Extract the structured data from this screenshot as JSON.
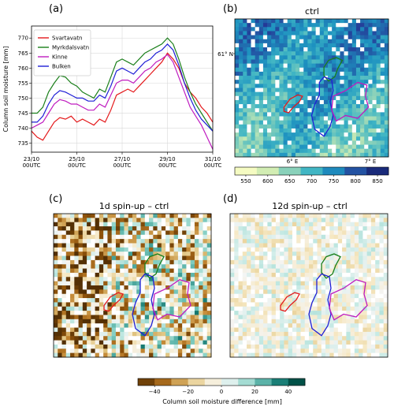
{
  "chart_data": [
    {
      "type": "line",
      "panel": "(a)",
      "ylabel": "Column soil moisture [mm]",
      "xlim": [
        0,
        32
      ],
      "ylim": [
        732,
        774
      ],
      "yticks": [
        735,
        740,
        745,
        750,
        755,
        760,
        765,
        770
      ],
      "xticks": [
        {
          "t": 0,
          "l1": "23/10",
          "l2": "00UTC"
        },
        {
          "t": 8,
          "l1": "25/10",
          "l2": "00UTC"
        },
        {
          "t": 16,
          "l1": "27/10",
          "l2": "00UTC"
        },
        {
          "t": 24,
          "l1": "29/10",
          "l2": "00UTC"
        },
        {
          "t": 32,
          "l1": "31/10",
          "l2": "00UTC"
        }
      ],
      "grid": true,
      "legend_position": "top-left",
      "series": [
        {
          "name": "Svartavatn",
          "color": "#e41a1c",
          "points": [
            [
              0,
              739
            ],
            [
              1,
              737
            ],
            [
              2,
              736
            ],
            [
              3,
              739
            ],
            [
              4,
              742
            ],
            [
              5,
              743.5
            ],
            [
              6,
              743
            ],
            [
              7,
              744
            ],
            [
              8,
              742
            ],
            [
              9,
              743
            ],
            [
              10,
              742
            ],
            [
              11,
              741
            ],
            [
              12,
              743
            ],
            [
              13,
              742
            ],
            [
              14,
              746
            ],
            [
              15,
              751
            ],
            [
              16,
              752
            ],
            [
              17,
              753
            ],
            [
              18,
              752
            ],
            [
              19,
              754
            ],
            [
              20,
              756
            ],
            [
              21,
              758
            ],
            [
              22,
              760
            ],
            [
              23,
              762
            ],
            [
              24,
              765
            ],
            [
              25,
              763
            ],
            [
              26,
              760
            ],
            [
              27,
              755
            ],
            [
              28,
              752
            ],
            [
              29,
              750
            ],
            [
              30,
              747
            ],
            [
              31,
              745
            ],
            [
              32,
              742
            ]
          ]
        },
        {
          "name": "Myrkdalsvatn",
          "color": "#1a7f1a",
          "points": [
            [
              0,
              745
            ],
            [
              1,
              745
            ],
            [
              2,
              747
            ],
            [
              3,
              752
            ],
            [
              4,
              755
            ],
            [
              5,
              757.5
            ],
            [
              6,
              757
            ],
            [
              7,
              755
            ],
            [
              8,
              754
            ],
            [
              9,
              752
            ],
            [
              10,
              751
            ],
            [
              11,
              750
            ],
            [
              12,
              753
            ],
            [
              13,
              752
            ],
            [
              14,
              757
            ],
            [
              15,
              762
            ],
            [
              16,
              763
            ],
            [
              17,
              762
            ],
            [
              18,
              761
            ],
            [
              19,
              763
            ],
            [
              20,
              765
            ],
            [
              21,
              766
            ],
            [
              22,
              767
            ],
            [
              23,
              768
            ],
            [
              24,
              770
            ],
            [
              25,
              768
            ],
            [
              26,
              763
            ],
            [
              27,
              757
            ],
            [
              28,
              752
            ],
            [
              29,
              748
            ],
            [
              30,
              745
            ],
            [
              31,
              742
            ],
            [
              32,
              739
            ]
          ]
        },
        {
          "name": "Kinne",
          "color": "#bf1bbf",
          "points": [
            [
              0,
              740
            ],
            [
              1,
              741
            ],
            [
              2,
              742
            ],
            [
              3,
              745
            ],
            [
              4,
              748
            ],
            [
              5,
              749.5
            ],
            [
              6,
              749
            ],
            [
              7,
              748
            ],
            [
              8,
              748
            ],
            [
              9,
              747
            ],
            [
              10,
              746
            ],
            [
              11,
              746
            ],
            [
              12,
              748
            ],
            [
              13,
              747
            ],
            [
              14,
              751
            ],
            [
              15,
              755
            ],
            [
              16,
              756
            ],
            [
              17,
              756
            ],
            [
              18,
              755
            ],
            [
              19,
              757
            ],
            [
              20,
              759
            ],
            [
              21,
              760
            ],
            [
              22,
              762
            ],
            [
              23,
              763
            ],
            [
              24,
              764.5
            ],
            [
              25,
              762
            ],
            [
              26,
              757
            ],
            [
              27,
              752
            ],
            [
              28,
              747
            ],
            [
              29,
              744
            ],
            [
              30,
              741
            ],
            [
              31,
              737
            ],
            [
              32,
              733
            ]
          ]
        },
        {
          "name": "Bulken",
          "color": "#1f1fd6",
          "points": [
            [
              0,
              742
            ],
            [
              1,
              742
            ],
            [
              2,
              744
            ],
            [
              3,
              748
            ],
            [
              4,
              751
            ],
            [
              5,
              752.5
            ],
            [
              6,
              752
            ],
            [
              7,
              751
            ],
            [
              8,
              750
            ],
            [
              9,
              750
            ],
            [
              10,
              749
            ],
            [
              11,
              749
            ],
            [
              12,
              751
            ],
            [
              13,
              750
            ],
            [
              14,
              754
            ],
            [
              15,
              759
            ],
            [
              16,
              760
            ],
            [
              17,
              759
            ],
            [
              18,
              758
            ],
            [
              19,
              760
            ],
            [
              20,
              762
            ],
            [
              21,
              763
            ],
            [
              22,
              765
            ],
            [
              23,
              766
            ],
            [
              24,
              768
            ],
            [
              25,
              766
            ],
            [
              26,
              761
            ],
            [
              27,
              755
            ],
            [
              28,
              750
            ],
            [
              29,
              746
            ],
            [
              30,
              743
            ],
            [
              31,
              741
            ],
            [
              32,
              739
            ]
          ]
        }
      ]
    },
    {
      "type": "heatmap",
      "panel": "(b)",
      "title": "ctrl",
      "lat_label": "61° N",
      "lon_labels": [
        "6° E",
        "7° E"
      ],
      "colorbar_ticks": [
        550,
        600,
        650,
        700,
        750,
        800,
        850
      ],
      "value_range": [
        525,
        875
      ]
    },
    {
      "type": "heatmap",
      "panel": "(c)",
      "title": "1d spin-up – ctrl",
      "value_range": [
        -50,
        50
      ]
    },
    {
      "type": "heatmap",
      "panel": "(d)",
      "title": "12d spin-up – ctrl",
      "value_range": [
        -50,
        50
      ]
    }
  ],
  "diverging_colorbar": {
    "label": "Column soil moisture difference [mm]",
    "ticks": [
      -40,
      -20,
      0,
      20,
      40
    ]
  },
  "colors": {
    "lake_svartavatn": "#e41a1c",
    "lake_myrkdalsvatn": "#1a7f1a",
    "lake_kinne": "#bf1bbf",
    "lake_bulken": "#1f1fd6"
  }
}
